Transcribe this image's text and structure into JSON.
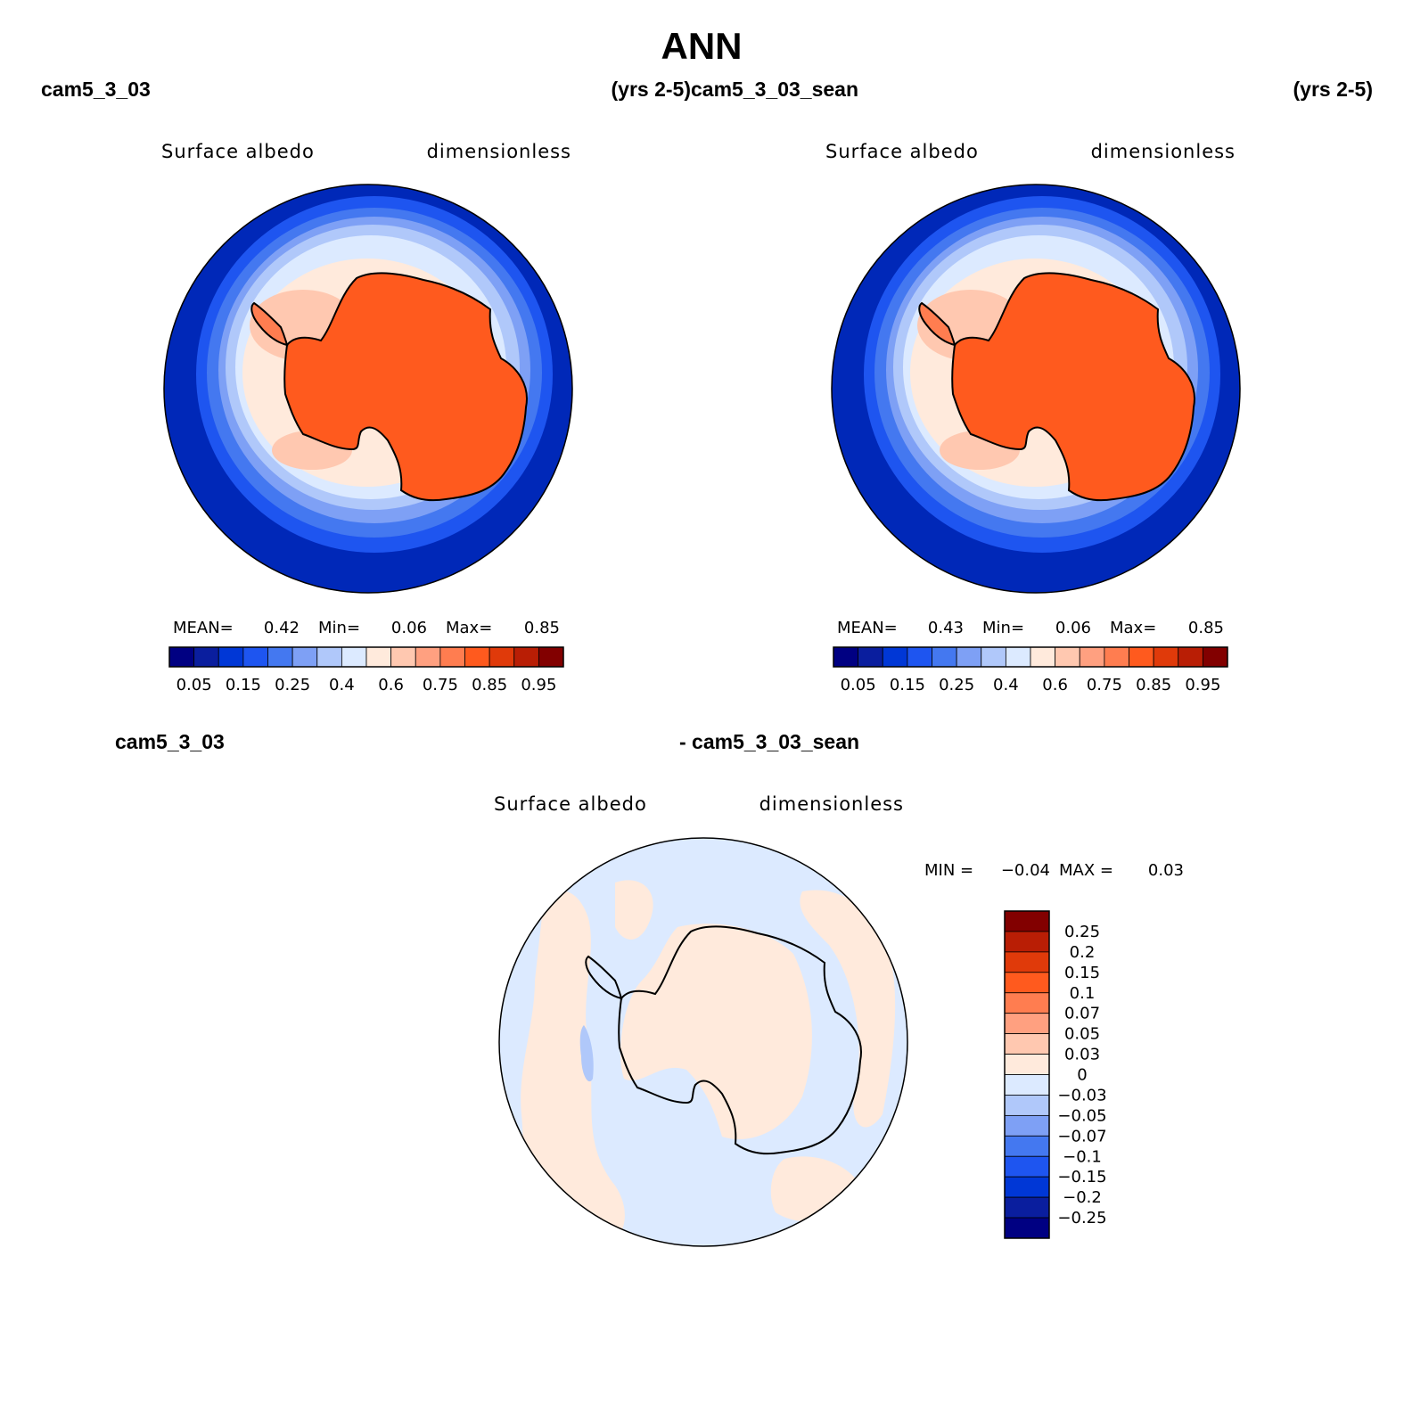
{
  "title": "ANN",
  "colors": {
    "ocean_low": "#0022b4",
    "land_high": "#ff5a1e",
    "coastline": "#000000"
  },
  "chart_data": [
    {
      "type": "heatmap",
      "projection": "south-polar-stereographic",
      "case": "cam5_3_03",
      "period": "(yrs 2-5)",
      "variable": "Surface albedo",
      "units": "dimensionless",
      "stats": {
        "mean_label": "MEAN=",
        "mean": "0.42",
        "min_label": "Min=",
        "min": "0.06",
        "max_label": "Max=",
        "max": "0.85"
      },
      "regions": {
        "open_ocean": 0.06,
        "sea_ice_outer": 0.2,
        "sea_ice_mid": 0.35,
        "sea_ice_inner": 0.45,
        "ice_shelf": 0.6,
        "antarctic_continent": 0.82
      },
      "colorbar": {
        "orientation": "horizontal",
        "levels": [
          "0.05",
          "0.1",
          "0.15",
          "0.2",
          "0.25",
          "0.3",
          "0.4",
          "0.5",
          "0.6",
          "0.7",
          "0.75",
          "0.8",
          "0.85",
          "0.9",
          "0.95"
        ],
        "tick_labels": [
          "0.05",
          "0.15",
          "0.25",
          "0.4",
          "0.6",
          "0.75",
          "0.85",
          "0.95"
        ],
        "colors": [
          "#000082",
          "#0a1e9e",
          "#0037d6",
          "#1e55f0",
          "#4478f0",
          "#7ea0f5",
          "#b0c8fa",
          "#dceaff",
          "#ffeadc",
          "#ffc8b0",
          "#ffa080",
          "#ff7d50",
          "#ff5a1e",
          "#e03a0a",
          "#b91e05",
          "#820000"
        ]
      }
    },
    {
      "type": "heatmap",
      "projection": "south-polar-stereographic",
      "case": "cam5_3_03_sean",
      "period": "(yrs 2-5)",
      "variable": "Surface albedo",
      "units": "dimensionless",
      "stats": {
        "mean_label": "MEAN=",
        "mean": "0.43",
        "min_label": "Min=",
        "min": "0.06",
        "max_label": "Max=",
        "max": "0.85"
      },
      "regions": {
        "open_ocean": 0.06,
        "sea_ice_outer": 0.2,
        "sea_ice_mid": 0.35,
        "sea_ice_inner": 0.45,
        "ice_shelf": 0.6,
        "antarctic_continent": 0.82
      },
      "colorbar": {
        "orientation": "horizontal",
        "levels": [
          "0.05",
          "0.1",
          "0.15",
          "0.2",
          "0.25",
          "0.3",
          "0.4",
          "0.5",
          "0.6",
          "0.7",
          "0.75",
          "0.8",
          "0.85",
          "0.9",
          "0.95"
        ],
        "tick_labels": [
          "0.05",
          "0.15",
          "0.25",
          "0.4",
          "0.6",
          "0.75",
          "0.85",
          "0.95"
        ],
        "colors": [
          "#000082",
          "#0a1e9e",
          "#0037d6",
          "#1e55f0",
          "#4478f0",
          "#7ea0f5",
          "#b0c8fa",
          "#dceaff",
          "#ffeadc",
          "#ffc8b0",
          "#ffa080",
          "#ff7d50",
          "#ff5a1e",
          "#e03a0a",
          "#b91e05",
          "#820000"
        ]
      }
    },
    {
      "type": "heatmap",
      "projection": "south-polar-stereographic",
      "case_left": "cam5_3_03",
      "case_right": "- cam5_3_03_sean",
      "variable": "Surface albedo",
      "units": "dimensionless",
      "stats": {
        "min_label": "MIN =",
        "min": "−0.04",
        "max_label": "MAX =",
        "max": "0.03"
      },
      "regions": {
        "background": -0.01,
        "positive_patches": 0.01,
        "negative_streak": -0.04
      },
      "colorbar": {
        "orientation": "vertical",
        "labels_top_to_bottom": [
          "0.25",
          "0.2",
          "0.15",
          "0.1",
          "0.07",
          "0.05",
          "0.03",
          "0",
          "−0.03",
          "−0.05",
          "−0.07",
          "−0.1",
          "−0.15",
          "−0.2",
          "−0.25"
        ],
        "colors_top_to_bottom": [
          "#820000",
          "#b91e05",
          "#e03a0a",
          "#ff5a1e",
          "#ff7d50",
          "#ffa080",
          "#ffc8b0",
          "#ffeadc",
          "#dceaff",
          "#b0c8fa",
          "#7ea0f5",
          "#4478f0",
          "#1e55f0",
          "#0037d6",
          "#0a1e9e",
          "#000082"
        ]
      }
    }
  ]
}
